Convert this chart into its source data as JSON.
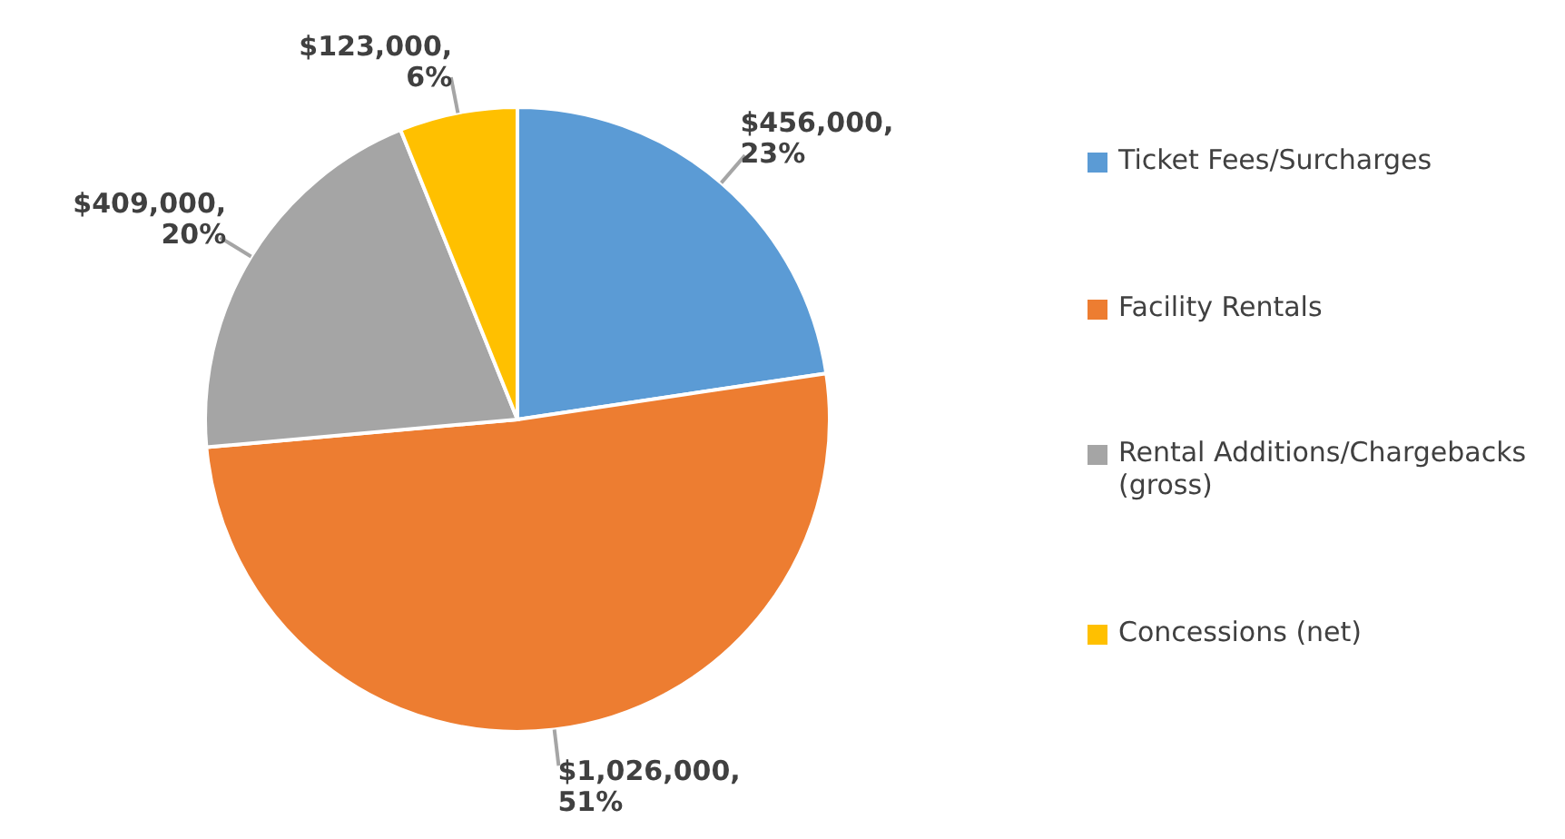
{
  "chart_data": {
    "type": "pie",
    "categories": [
      "Ticket Fees/Surcharges",
      "Facility Rentals",
      "Rental Additions/Chargebacks (gross)",
      "Concessions (net)"
    ],
    "values": [
      456000,
      1026000,
      409000,
      123000
    ],
    "colors": [
      "#5b9bd5",
      "#ed7d31",
      "#a5a5a5",
      "#ffc000"
    ],
    "value_labels": [
      "$456,000, 23%",
      "$1,026,000, 51%",
      "$409,000, 20%",
      "$123,000, 6%"
    ],
    "legend": "right"
  }
}
